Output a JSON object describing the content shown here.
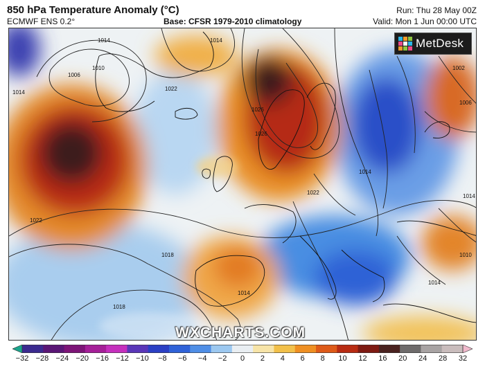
{
  "header": {
    "title": "850 hPa Temperature Anomaly (°C)",
    "model": "ECMWF ENS 0.2°",
    "base": "Base: CFSR 1979-2010 climatology",
    "run": "Run: Thu 28 May 00Z",
    "valid": "Valid: Mon 1 Jun 00:00 UTC"
  },
  "logo": {
    "text": "MetDesk",
    "icon": "metdesk-logo-icon"
  },
  "watermark": "WXCHARTS.COM",
  "isobar_labels": [
    "1014",
    "1018",
    "1022",
    "1014",
    "1010",
    "1006",
    "1014",
    "1026",
    "1026",
    "1014",
    "1022",
    "1014",
    "1002",
    "1006",
    "1014",
    "1022",
    "1018",
    "1014",
    "1010",
    "1014"
  ],
  "colorbar": {
    "ticks": [
      "−32",
      "−28",
      "−24",
      "−20",
      "−16",
      "−12",
      "−10",
      "−8",
      "−6",
      "−4",
      "−2",
      "0",
      "2",
      "4",
      "6",
      "8",
      "10",
      "12",
      "16",
      "20",
      "24",
      "28",
      "32"
    ],
    "colors": [
      "#1aa58c",
      "#3b2a8f",
      "#5a1675",
      "#7d1477",
      "#a51f98",
      "#c52fbd",
      "#5a36b8",
      "#2b3fc4",
      "#2f62d8",
      "#4f8ee6",
      "#9cc8f0",
      "#e9eef2",
      "#f7e4a8",
      "#f2c04a",
      "#ef8f22",
      "#de5a18",
      "#b82b12",
      "#7e1a12",
      "#4a2220",
      "#6e6b6b",
      "#a8a3a3",
      "#c9bcbc",
      "#f0b9cc"
    ]
  }
}
